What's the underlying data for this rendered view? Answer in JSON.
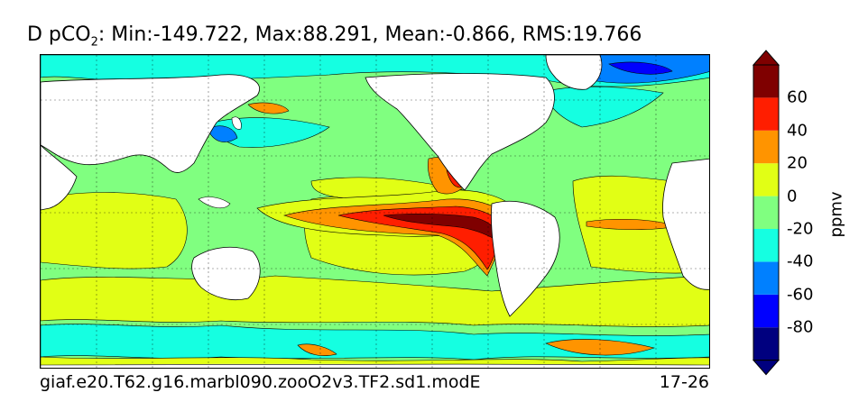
{
  "title": {
    "variable": "D pCO",
    "subscript": "2",
    "stats": ": Min:-149.722, Max:88.291, Mean:-0.866, RMS:19.766"
  },
  "footer": {
    "case_name": "giaf.e20.T62.g16.marbl090.zooO2v3.TF2.sd1.modE",
    "years": "17-26"
  },
  "colorbar": {
    "label": "ppmv",
    "ticks": [
      "60",
      "40",
      "20",
      "0",
      "-20",
      "-40",
      "-60",
      "-80"
    ],
    "levels": [
      -100,
      -80,
      -60,
      -40,
      -20,
      0,
      20,
      40,
      60,
      80
    ],
    "colors": [
      "#00007f",
      "#0000ff",
      "#0080ff",
      "#15ffe1",
      "#80ff80",
      "#e1ff15",
      "#ff9400",
      "#ff1e00",
      "#7f0000"
    ],
    "extend": "both"
  },
  "map": {
    "projection": "global lat-lon, 25°E centred on Pacific",
    "grid": "dashed graticule",
    "land_color": "#ffffff"
  }
}
